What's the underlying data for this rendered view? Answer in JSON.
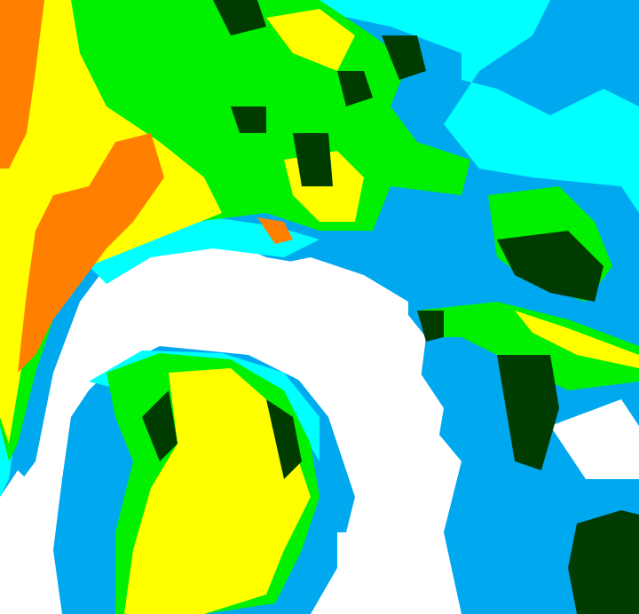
{
  "map": {
    "type": "false-color classified imagery",
    "palette": {
      "background": "#ffffff",
      "blue": "#00a8f0",
      "cyan": "#00ffff",
      "green": "#00f000",
      "yellow": "#ffff00",
      "orange": "#ff8000",
      "dark_green": "#003c00"
    }
  }
}
